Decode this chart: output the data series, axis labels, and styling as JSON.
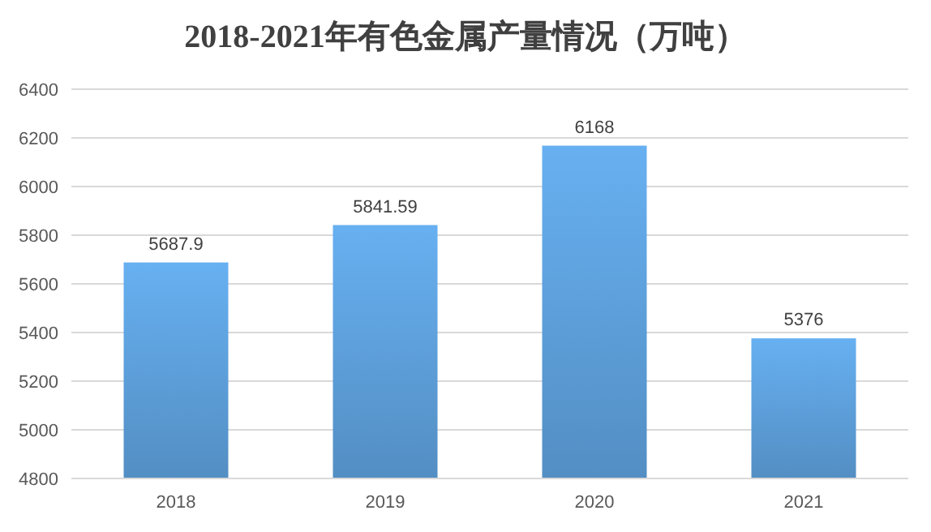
{
  "chart_data": {
    "type": "bar",
    "title": "2018-2021年有色金属产量情况（万吨）",
    "categories": [
      "2018",
      "2019",
      "2020",
      "2021"
    ],
    "values": [
      5687.9,
      5841.59,
      6168,
      5376
    ],
    "color": "#5b9bd5",
    "ylim": [
      4800,
      6400
    ],
    "yticks": [
      4800,
      5000,
      5200,
      5400,
      5600,
      5800,
      6000,
      6200,
      6400
    ],
    "grid": "y",
    "data_labels": true
  }
}
